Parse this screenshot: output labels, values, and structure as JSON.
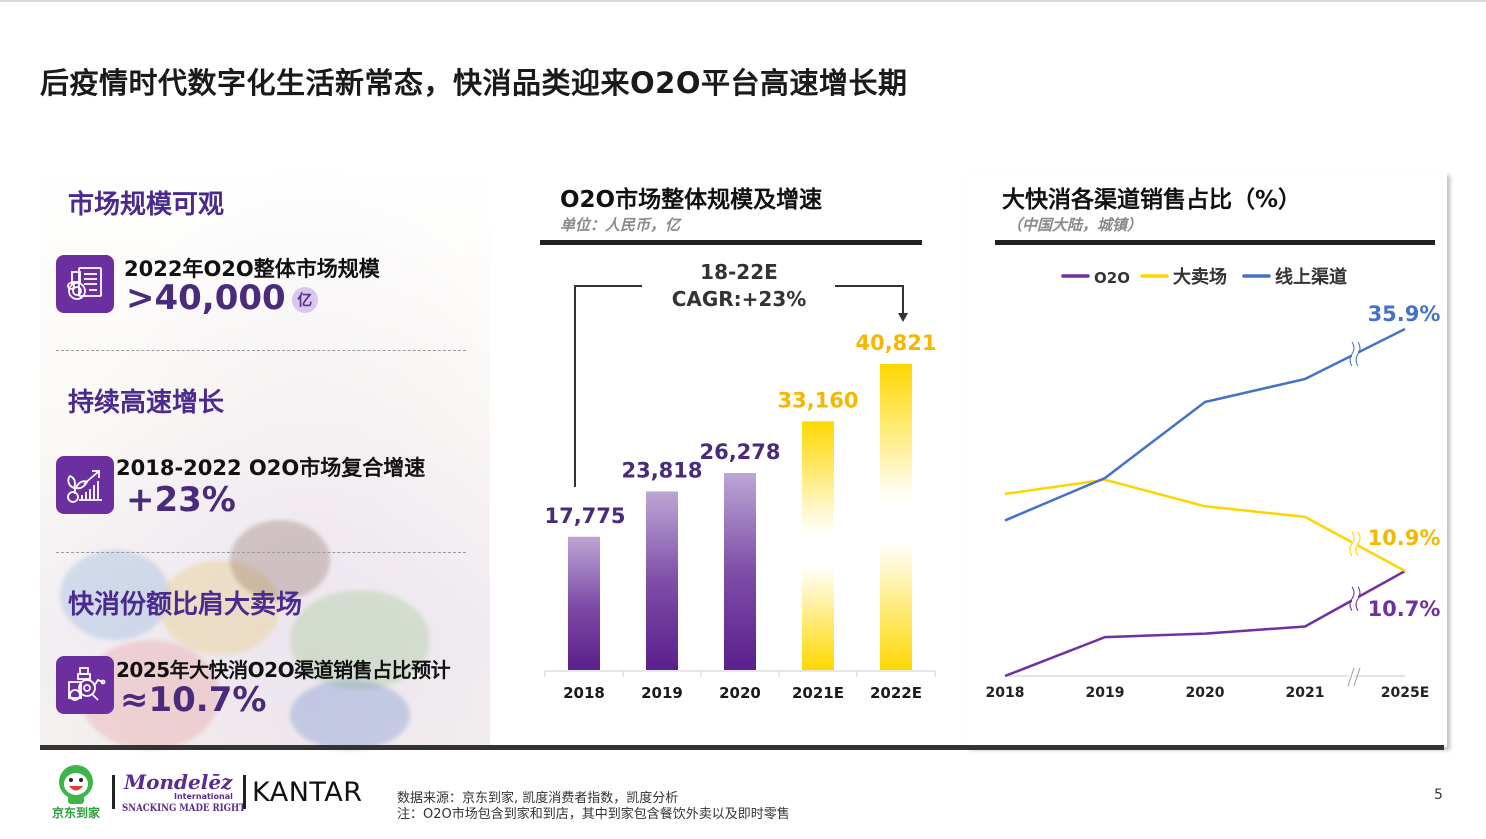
{
  "page": {
    "title": "后疫情时代数字化生活新常态，快消品类迎来O2O平台高速增长期",
    "page_number": "5"
  },
  "left_panel": {
    "sections": [
      {
        "heading": "市场规模可观",
        "icon": "report-coins-icon",
        "label": "2022年O2O整体市场规模",
        "value": ">40,000",
        "unit": "亿"
      },
      {
        "heading": "持续高速增长",
        "icon": "growth-chart-icon",
        "label": "2018-2022 O2O市场复合增速",
        "value": "+23%"
      },
      {
        "heading": "快消份额比肩大卖场",
        "icon": "analysis-icon",
        "label": "2025年大快消O2O渠道销售占比预计",
        "value": "≈10.7%"
      }
    ]
  },
  "chart_data": [
    {
      "type": "bar",
      "title": "O2O市场整体规模及增速",
      "subtitle": "单位：人民币，亿",
      "categories": [
        "2018",
        "2019",
        "2020",
        "2021E",
        "2022E"
      ],
      "values": [
        17775,
        23818,
        26278,
        33160,
        40821
      ],
      "value_labels": [
        "17,775",
        "23,818",
        "26,278",
        "33,160",
        "40,821"
      ],
      "estimated": [
        false,
        false,
        false,
        true,
        true
      ],
      "annotation": {
        "line1": "18-22E",
        "line2": "CAGR:+23%"
      },
      "ylim": [
        0,
        45000
      ],
      "grid": false,
      "colors": {
        "actual": "#5a1f8c",
        "actual_light": "#b9a1d0",
        "estimate": "#ffd800",
        "actual_label": "#4a2a7a",
        "estimate_label": "#f5b800"
      }
    },
    {
      "type": "line",
      "title": "大快消各渠道销售占比（%）",
      "subtitle": "（中国大陆，城镇）",
      "x": [
        "2018",
        "2019",
        "2020",
        "2021",
        "2025E"
      ],
      "axis_break_between": [
        "2021",
        "2025E"
      ],
      "legend_position": "top",
      "series": [
        {
          "name": "O2O",
          "color": "#7030a0",
          "values": [
            3.0,
            5.2,
            5.4,
            5.8,
            10.7
          ],
          "end_label": "10.7%"
        },
        {
          "name": "大卖场",
          "color": "#ffd400",
          "values": [
            13.3,
            14.1,
            12.6,
            12.0,
            10.9
          ],
          "end_label": "10.9%"
        },
        {
          "name": "线上渠道",
          "color": "#4472c4",
          "values": [
            11.8,
            14.2,
            18.5,
            19.8,
            35.9
          ],
          "end_label": "35.9%"
        }
      ],
      "grid": false
    }
  ],
  "footer": {
    "logos": {
      "jd": "京东到家",
      "mondelez": "Mondelēz",
      "mondelez_sub": "International",
      "mondelez_tagline": "SNACKING MADE RIGHT",
      "kantar": "KANTAR"
    },
    "source": "数据来源：京东到家, 凯度消费者指数，凯度分析",
    "note": "注：O2O市场包含到家和到店，其中到家包含餐饮外卖以及即时零售"
  }
}
